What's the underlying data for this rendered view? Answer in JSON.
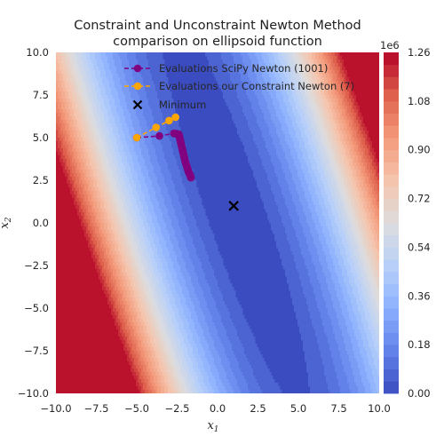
{
  "chart_data": {
    "type": "contour",
    "title_lines": [
      "Constraint and Unconstraint Newton Method",
      "comparison on ellipsoid function"
    ],
    "xlabel": "x",
    "xlabel_sub": "1",
    "ylabel": "x",
    "ylabel_sub": "2",
    "xlim": [
      -10,
      10
    ],
    "ylim": [
      -10,
      10
    ],
    "xticks": [
      -10,
      -7.5,
      -5,
      -2.5,
      0,
      2.5,
      5,
      7.5,
      10
    ],
    "xtick_labels": [
      "−10.0",
      "−7.5",
      "−5.0",
      "−2.5",
      "0.0",
      "2.5",
      "5.0",
      "7.5",
      "10.0"
    ],
    "yticks": [
      10,
      7.5,
      5,
      2.5,
      0,
      -2.5,
      -5,
      -7.5,
      -10
    ],
    "ytick_labels": [
      "10.0",
      "7.5",
      "5.0",
      "2.5",
      "0.0",
      "−2.5",
      "−5.0",
      "−7.5",
      "−10.0"
    ],
    "colorbar": {
      "multiplier": "1e6",
      "min": 0,
      "max": 1.26,
      "levels": 28,
      "ticks": [
        0,
        0.18,
        0.36,
        0.54,
        0.72,
        0.9,
        1.08,
        1.26
      ],
      "tick_labels": [
        "0.00",
        "0.18",
        "0.36",
        "0.54",
        "0.72",
        "0.90",
        "1.08",
        "1.26"
      ],
      "colormap": "coolwarm"
    },
    "legend_position": "upper center",
    "series": [
      {
        "name": "Evaluations SciPy Newton (1001)",
        "color": "#800080",
        "marker": "circle",
        "linestyle": "dashed",
        "points": [
          [
            -5.0,
            5.0
          ],
          [
            -3.6,
            5.1
          ],
          [
            -2.7,
            5.25
          ],
          [
            -2.4,
            5.2
          ],
          [
            -2.3,
            4.8
          ],
          [
            -2.2,
            4.4
          ],
          [
            -2.1,
            4.0
          ],
          [
            -2.0,
            3.6
          ],
          [
            -1.9,
            3.3
          ],
          [
            -1.8,
            3.0
          ],
          [
            -1.7,
            2.8
          ],
          [
            -1.65,
            2.65
          ]
        ]
      },
      {
        "name": "Evaluations our Constraint Newton (7)",
        "color": "#ffa500",
        "marker": "circle",
        "linestyle": "dashed",
        "points": [
          [
            -5.0,
            5.0
          ],
          [
            -3.8,
            5.6
          ],
          [
            -3.0,
            6.0
          ],
          [
            -2.6,
            6.2
          ]
        ]
      },
      {
        "name": "Minimum",
        "color": "#000000",
        "marker": "x",
        "points": [
          [
            1.0,
            1.0
          ]
        ]
      }
    ]
  }
}
